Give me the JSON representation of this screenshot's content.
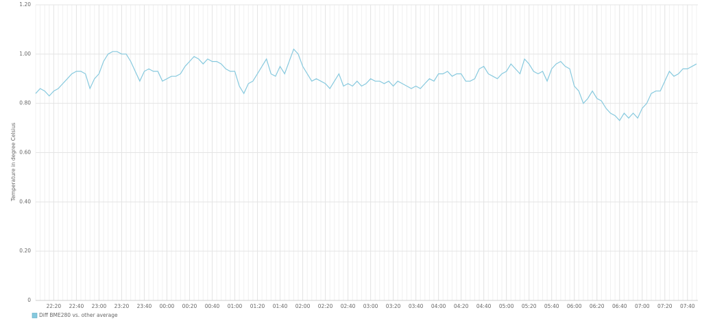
{
  "chart_data": {
    "type": "line",
    "y_label": "Temperature in degree Celsius",
    "x": [
      "22:04",
      "22:08",
      "22:12",
      "22:16",
      "22:20",
      "22:24",
      "22:28",
      "22:32",
      "22:36",
      "22:40",
      "22:44",
      "22:48",
      "22:52",
      "22:56",
      "23:00",
      "23:04",
      "23:08",
      "23:12",
      "23:16",
      "23:20",
      "23:24",
      "23:28",
      "23:32",
      "23:36",
      "23:40",
      "23:44",
      "23:48",
      "23:52",
      "23:56",
      "00:00",
      "00:04",
      "00:08",
      "00:12",
      "00:16",
      "00:20",
      "00:24",
      "00:28",
      "00:32",
      "00:36",
      "00:40",
      "00:44",
      "00:48",
      "00:52",
      "00:56",
      "01:00",
      "01:04",
      "01:08",
      "01:12",
      "01:16",
      "01:20",
      "01:24",
      "01:28",
      "01:32",
      "01:36",
      "01:40",
      "01:44",
      "01:48",
      "01:52",
      "01:56",
      "02:00",
      "02:04",
      "02:08",
      "02:12",
      "02:16",
      "02:20",
      "02:24",
      "02:28",
      "02:32",
      "02:36",
      "02:40",
      "02:44",
      "02:48",
      "02:52",
      "02:56",
      "03:00",
      "03:04",
      "03:08",
      "03:12",
      "03:16",
      "03:20",
      "03:24",
      "03:28",
      "03:32",
      "03:36",
      "03:40",
      "03:44",
      "03:48",
      "03:52",
      "03:56",
      "04:00",
      "04:04",
      "04:08",
      "04:12",
      "04:16",
      "04:20",
      "04:24",
      "04:28",
      "04:32",
      "04:36",
      "04:40",
      "04:44",
      "04:48",
      "04:52",
      "04:56",
      "05:00",
      "05:04",
      "05:08",
      "05:12",
      "05:16",
      "05:20",
      "05:24",
      "05:28",
      "05:32",
      "05:36",
      "05:40",
      "05:44",
      "05:48",
      "05:52",
      "05:56",
      "06:00",
      "06:04",
      "06:08",
      "06:12",
      "06:16",
      "06:20",
      "06:24",
      "06:28",
      "06:32",
      "06:36",
      "06:40",
      "06:44",
      "06:48",
      "06:52",
      "06:56",
      "07:00",
      "07:04",
      "07:08",
      "07:12",
      "07:16",
      "07:20",
      "07:24",
      "07:28",
      "07:32",
      "07:36",
      "07:40",
      "07:44",
      "07:48"
    ],
    "series": [
      {
        "name": "Diff BME280 vs. other average",
        "color": "#86c9de",
        "values": [
          0.84,
          0.86,
          0.85,
          0.83,
          0.85,
          0.86,
          0.88,
          0.9,
          0.92,
          0.93,
          0.93,
          0.92,
          0.86,
          0.9,
          0.92,
          0.97,
          1.0,
          1.01,
          1.01,
          1.0,
          1.0,
          0.97,
          0.93,
          0.89,
          0.93,
          0.94,
          0.93,
          0.93,
          0.89,
          0.9,
          0.91,
          0.91,
          0.92,
          0.95,
          0.97,
          0.99,
          0.98,
          0.96,
          0.98,
          0.97,
          0.97,
          0.96,
          0.94,
          0.93,
          0.93,
          0.87,
          0.84,
          0.88,
          0.89,
          0.92,
          0.95,
          0.98,
          0.92,
          0.91,
          0.95,
          0.92,
          0.97,
          1.02,
          1.0,
          0.95,
          0.92,
          0.89,
          0.9,
          0.89,
          0.88,
          0.86,
          0.89,
          0.92,
          0.87,
          0.88,
          0.87,
          0.89,
          0.87,
          0.88,
          0.9,
          0.89,
          0.89,
          0.88,
          0.89,
          0.87,
          0.89,
          0.88,
          0.87,
          0.86,
          0.87,
          0.86,
          0.88,
          0.9,
          0.89,
          0.92,
          0.92,
          0.93,
          0.91,
          0.92,
          0.92,
          0.89,
          0.89,
          0.9,
          0.94,
          0.95,
          0.92,
          0.91,
          0.9,
          0.92,
          0.93,
          0.96,
          0.94,
          0.92,
          0.98,
          0.96,
          0.93,
          0.92,
          0.93,
          0.89,
          0.94,
          0.96,
          0.97,
          0.95,
          0.94,
          0.87,
          0.85,
          0.8,
          0.82,
          0.85,
          0.82,
          0.81,
          0.78,
          0.76,
          0.75,
          0.73,
          0.76,
          0.74,
          0.76,
          0.74,
          0.78,
          0.8,
          0.84,
          0.85,
          0.85,
          0.89,
          0.93,
          0.91,
          0.92,
          0.94,
          0.94,
          0.95,
          0.96
        ]
      }
    ],
    "xticks": [
      "22:20",
      "22:40",
      "23:00",
      "23:20",
      "23:40",
      "00:00",
      "00:20",
      "00:40",
      "01:00",
      "01:20",
      "01:40",
      "02:00",
      "02:20",
      "02:40",
      "03:00",
      "03:20",
      "03:40",
      "04:00",
      "04:20",
      "04:40",
      "05:00",
      "05:20",
      "05:40",
      "06:00",
      "06:20",
      "06:40",
      "07:00",
      "07:20",
      "07:40"
    ],
    "ylim": [
      0,
      1.2
    ],
    "yticks": [
      0,
      {
        "value": 0.2,
        "label": "0.20"
      },
      {
        "value": 0.4,
        "label": "0.40"
      },
      {
        "value": 0.6,
        "label": "0.60"
      },
      {
        "value": 0.8,
        "label": "0.80"
      },
      {
        "value": 1,
        "label": "1.00"
      },
      {
        "value": 1.2,
        "label": "1.20"
      }
    ],
    "grid": true
  }
}
